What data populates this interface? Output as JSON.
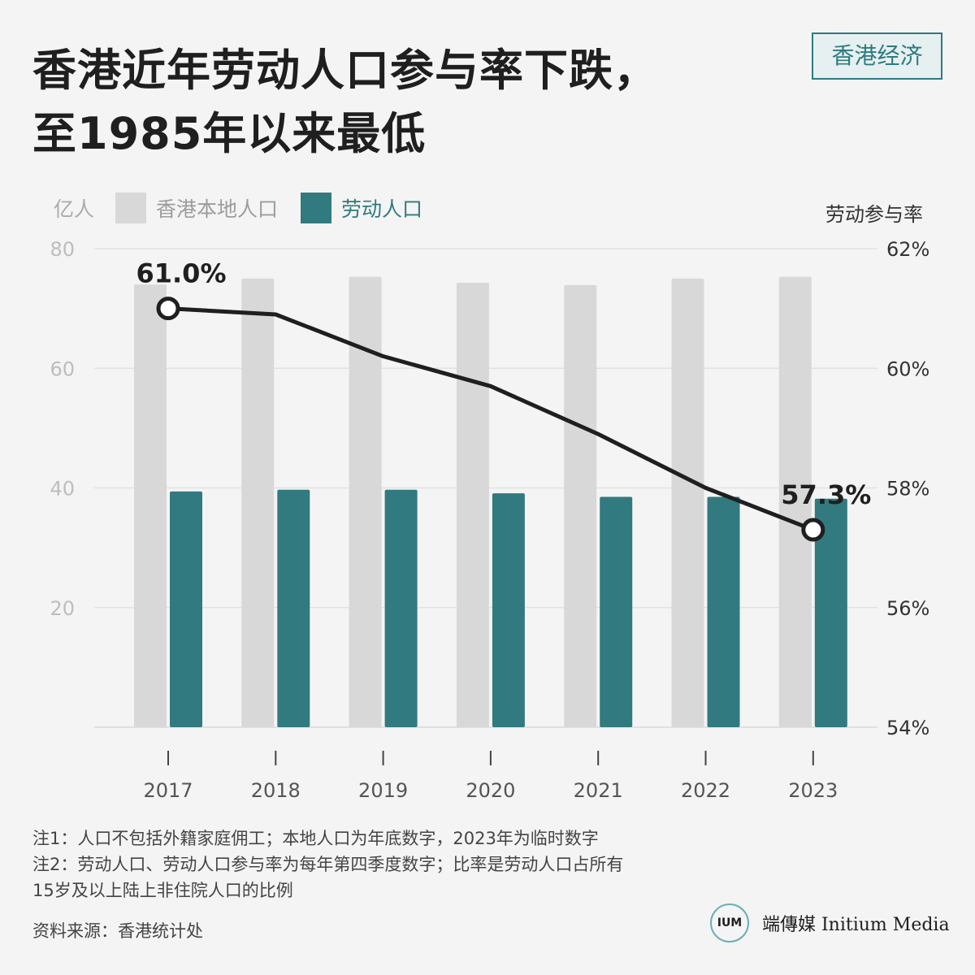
{
  "title_lines": [
    "香港近年劳动人口参与率下跌，",
    "至1985年以来最低"
  ],
  "tag": "香港经济",
  "legend": {
    "unit": "亿人",
    "series_local": "香港本地人口",
    "series_labor": "劳动人口"
  },
  "right_axis_title": "劳动参与率",
  "colors": {
    "local": "#d8d8d8",
    "labor": "#317a80",
    "rate_line": "#1f1f1f",
    "tag": "#2f7a80"
  },
  "chart_data": {
    "type": "bar",
    "categories": [
      "2017",
      "2018",
      "2019",
      "2020",
      "2021",
      "2022",
      "2023"
    ],
    "left_axis": {
      "ylim": [
        0,
        80
      ],
      "ticks": [
        20,
        40,
        60,
        80
      ],
      "unit": "亿人"
    },
    "right_axis": {
      "ylim": [
        54,
        62
      ],
      "ticks": [
        "54%",
        "56%",
        "58%",
        "60%",
        "62%"
      ],
      "title": "劳动参与率"
    },
    "series": [
      {
        "name": "香港本地人口",
        "kind": "bar",
        "axis": "left",
        "values": [
          74.0,
          75.0,
          75.3,
          74.3,
          73.9,
          75.0,
          75.3
        ]
      },
      {
        "name": "劳动人口",
        "kind": "bar",
        "axis": "left",
        "values": [
          39.4,
          39.7,
          39.7,
          39.1,
          38.5,
          38.5,
          38.2
        ]
      },
      {
        "name": "劳动参与率",
        "kind": "line",
        "axis": "right",
        "values": [
          61.0,
          60.9,
          60.2,
          59.7,
          58.9,
          58.0,
          57.3
        ]
      }
    ],
    "annotations": [
      {
        "category": "2017",
        "text": "61.0%"
      },
      {
        "category": "2023",
        "text": "57.3%"
      }
    ]
  },
  "notes": [
    "注1：人口不包括外籍家庭佣工；本地人口为年底数字，2023年为临时数字",
    "注2：劳动人口、劳动人口参与率为每年第四季度数字；比率是劳动人口占所有",
    "15岁及以上陆上非住院人口的比例"
  ],
  "source": "资料来源：香港统计处",
  "brand": {
    "logo_text": "IUM",
    "name": "端傳媒 Initium Media"
  }
}
